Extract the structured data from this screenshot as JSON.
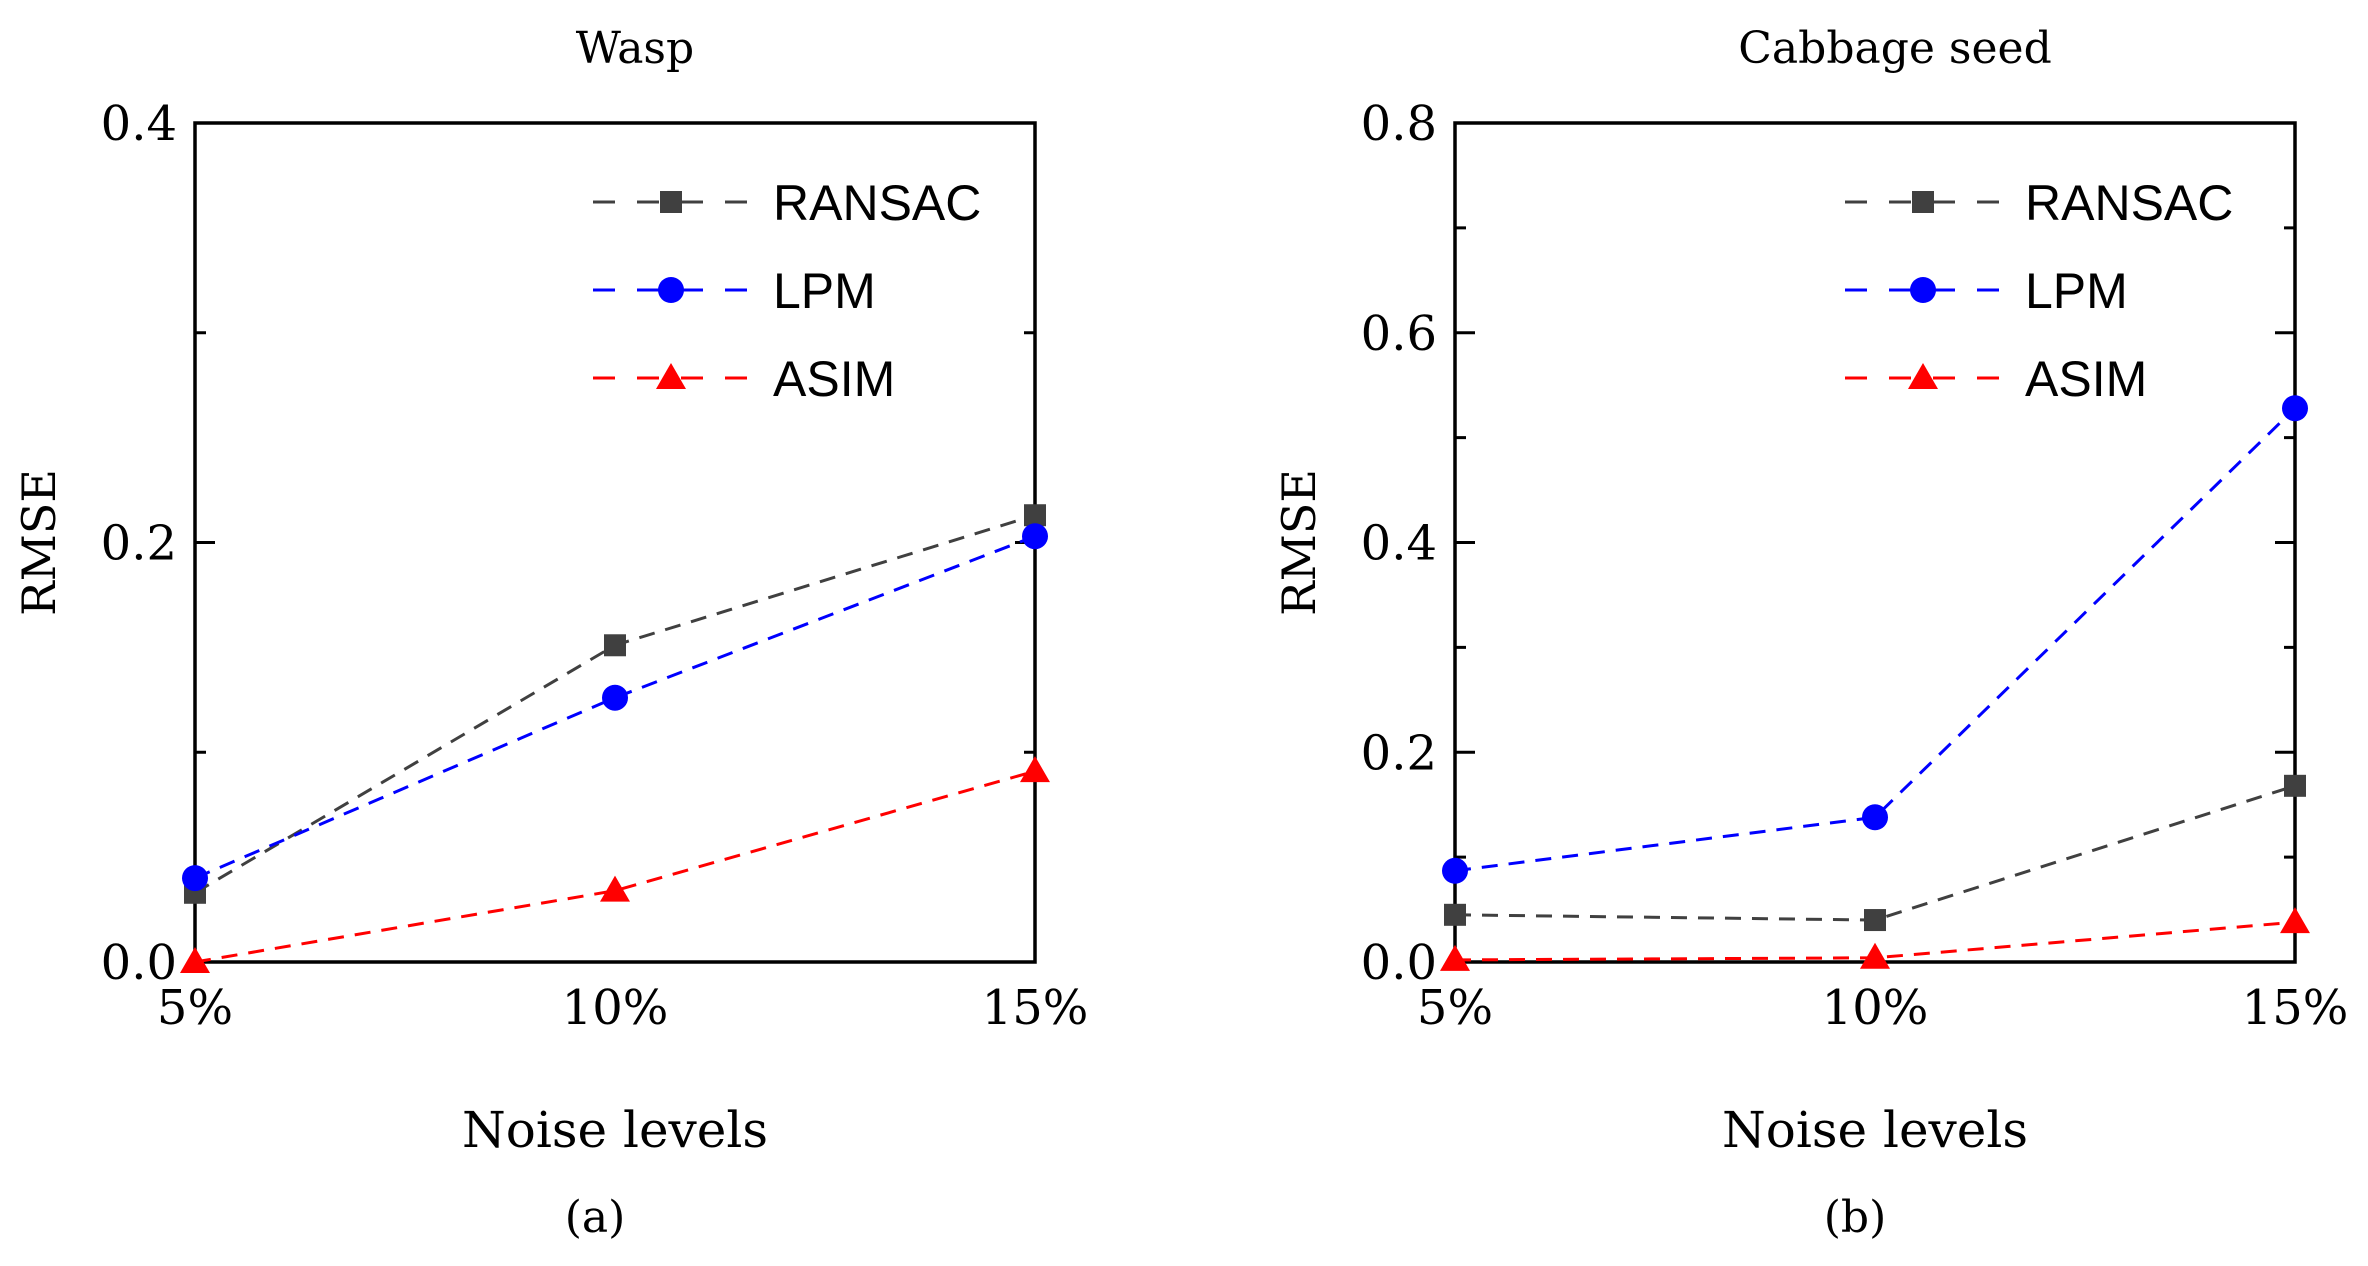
{
  "chart_data": [
    {
      "type": "line",
      "title": "Wasp",
      "xlabel": "Noise levels",
      "ylabel": "RMSE",
      "panel_label": "(a)",
      "categories": [
        "5%",
        "10%",
        "15%"
      ],
      "ylim": [
        0,
        0.4
      ],
      "yticks": [
        "0.0",
        "0.2",
        "0.4"
      ],
      "grid": false,
      "legend_position": "top-right",
      "series": [
        {
          "name": "RANSAC",
          "color": "#404040",
          "marker": "square",
          "values": [
            0.033,
            0.151,
            0.213
          ]
        },
        {
          "name": "LPM",
          "color": "#0000ff",
          "marker": "circle",
          "values": [
            0.04,
            0.126,
            0.203
          ]
        },
        {
          "name": "ASIM",
          "color": "#ff0000",
          "marker": "triangle",
          "values": [
            0.0,
            0.034,
            0.091
          ]
        }
      ]
    },
    {
      "type": "line",
      "title": "Cabbage seed",
      "xlabel": "Noise levels",
      "ylabel": "RMSE",
      "panel_label": "(b)",
      "categories": [
        "5%",
        "10%",
        "15%"
      ],
      "ylim": [
        0,
        0.8
      ],
      "yticks": [
        "0.0",
        "0.2",
        "0.4",
        "0.6",
        "0.8"
      ],
      "grid": false,
      "legend_position": "top-right",
      "series": [
        {
          "name": "RANSAC",
          "color": "#404040",
          "marker": "square",
          "values": [
            0.045,
            0.04,
            0.168
          ]
        },
        {
          "name": "LPM",
          "color": "#0000ff",
          "marker": "circle",
          "values": [
            0.087,
            0.138,
            0.528
          ]
        },
        {
          "name": "ASIM",
          "color": "#ff0000",
          "marker": "triangle",
          "values": [
            0.002,
            0.004,
            0.038
          ]
        }
      ]
    }
  ]
}
